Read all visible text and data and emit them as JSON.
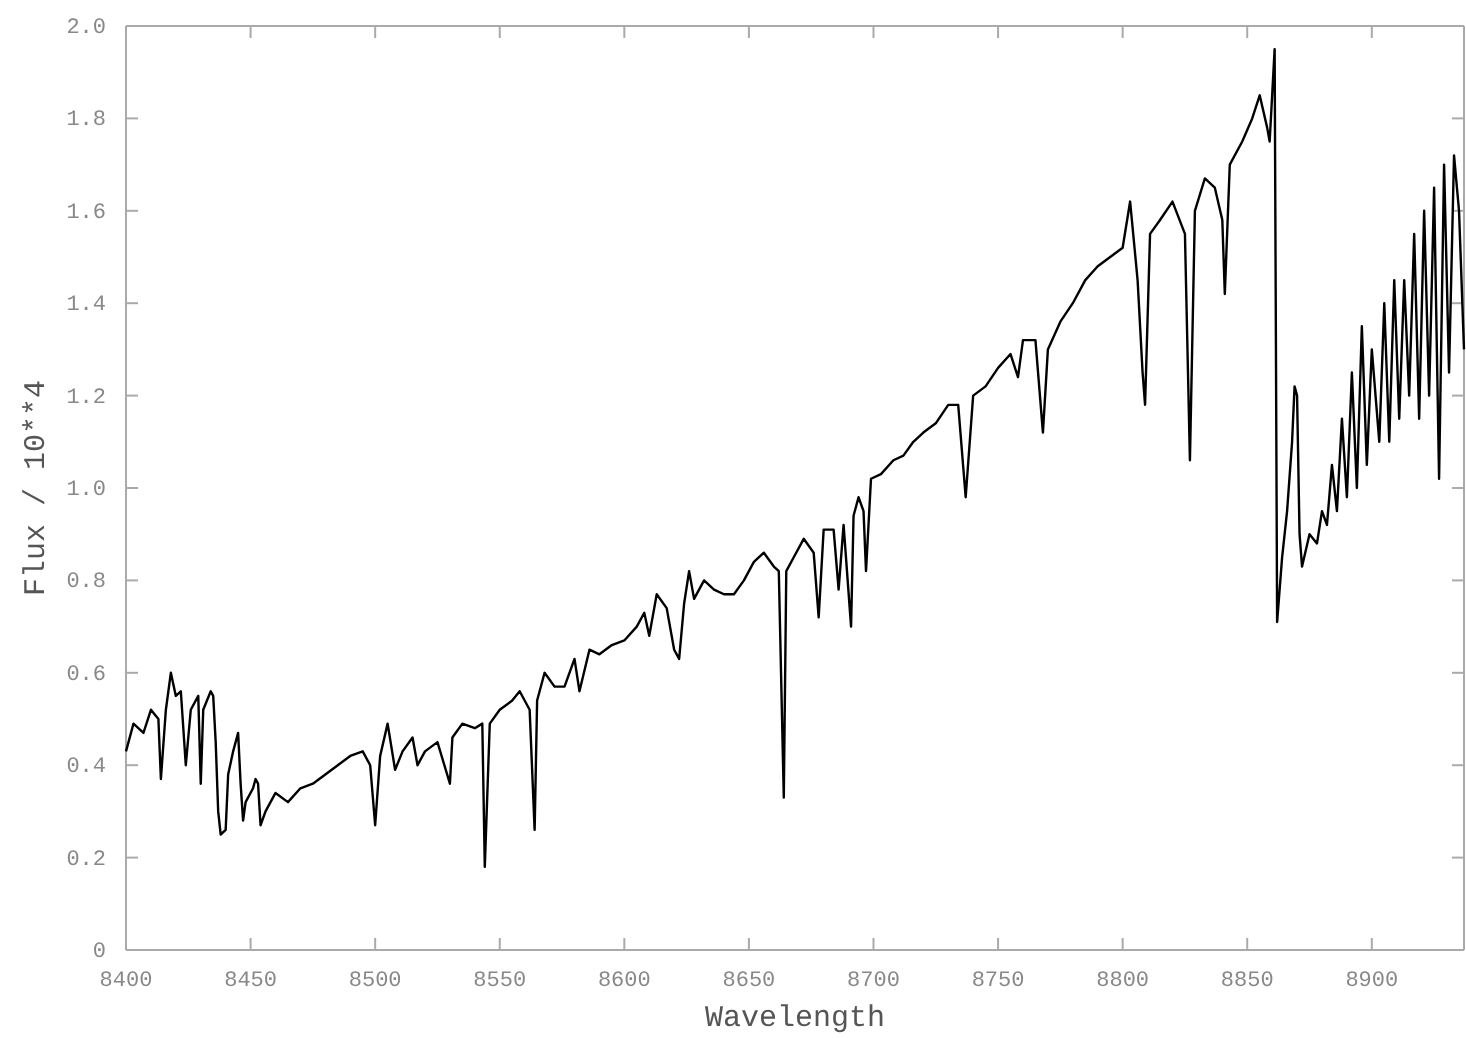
{
  "chart_data": {
    "type": "line",
    "xlabel": "Wavelength",
    "ylabel": "Flux / 10**4",
    "xlim": [
      8400,
      8937
    ],
    "xticks": [
      8400,
      8450,
      8500,
      8550,
      8600,
      8650,
      8700,
      8750,
      8800,
      8850,
      8900
    ],
    "ylim": [
      0,
      2.0
    ],
    "yticks": [
      {
        "value": 0,
        "label": "0"
      },
      {
        "value": 0.2,
        "label": "0.2"
      },
      {
        "value": 0.4,
        "label": "0.4"
      },
      {
        "value": 0.6,
        "label": "0.6"
      },
      {
        "value": 0.8,
        "label": "0.8"
      },
      {
        "value": 1.0,
        "label": "1.0"
      },
      {
        "value": 1.2,
        "label": "1.2"
      },
      {
        "value": 1.4,
        "label": "1.4"
      },
      {
        "value": 1.6,
        "label": "1.6"
      },
      {
        "value": 1.8,
        "label": "1.8"
      },
      {
        "value": 2.0,
        "label": "2.0"
      }
    ],
    "marker": "none",
    "line_style": "solid",
    "series": [
      {
        "color": "#000000",
        "x": [
          8400,
          8403,
          8407,
          8410,
          8413,
          8414,
          8416,
          8418,
          8420,
          8422,
          8424,
          8426,
          8429,
          8430,
          8431,
          8434,
          8435,
          8436,
          8437,
          8438,
          8440,
          8441,
          8443,
          8445,
          8446,
          8447,
          8448,
          8451,
          8452,
          8453,
          8454,
          8456,
          8460,
          8465,
          8470,
          8475,
          8480,
          8485,
          8490,
          8495,
          8498,
          8500,
          8502,
          8505,
          8508,
          8511,
          8515,
          8517,
          8520,
          8525,
          8530,
          8531,
          8535,
          8540,
          8543,
          8544,
          8546,
          8550,
          8555,
          8558,
          8562,
          8564,
          8565,
          8568,
          8572,
          8576,
          8580,
          8582,
          8586,
          8590,
          8595,
          8600,
          8605,
          8608,
          8610,
          8613,
          8617,
          8620,
          8622,
          8624,
          8626,
          8628,
          8632,
          8636,
          8640,
          8644,
          8648,
          8652,
          8656,
          8660,
          8662,
          8664,
          8665,
          8668,
          8672,
          8676,
          8678,
          8680,
          8684,
          8686,
          8688,
          8691,
          8692,
          8694,
          8696,
          8697,
          8699,
          8703,
          8708,
          8712,
          8716,
          8720,
          8725,
          8730,
          8734,
          8737,
          8740,
          8745,
          8750,
          8755,
          8758,
          8760,
          8765,
          8768,
          8770,
          8775,
          8780,
          8785,
          8790,
          8795,
          8800,
          8803,
          8806,
          8808,
          8809,
          8811,
          8815,
          8820,
          8825,
          8827,
          8829,
          8833,
          8837,
          8840,
          8841,
          8843,
          8848,
          8852,
          8855,
          8858,
          8859,
          8861,
          8862,
          8864,
          8866,
          8868,
          8869,
          8870,
          8871,
          8872,
          8875,
          8878,
          8880,
          8882,
          8884,
          8886,
          8888,
          8890,
          8892,
          8894,
          8896,
          8898,
          8900,
          8903,
          8905,
          8907,
          8909,
          8911,
          8913,
          8915,
          8917,
          8919,
          8921,
          8923,
          8925,
          8927,
          8929,
          8931,
          8933,
          8935,
          8937
        ],
        "values": [
          0.43,
          0.49,
          0.47,
          0.52,
          0.5,
          0.37,
          0.52,
          0.6,
          0.55,
          0.56,
          0.4,
          0.52,
          0.55,
          0.36,
          0.52,
          0.56,
          0.55,
          0.45,
          0.3,
          0.25,
          0.26,
          0.38,
          0.43,
          0.47,
          0.36,
          0.28,
          0.32,
          0.35,
          0.37,
          0.36,
          0.27,
          0.3,
          0.34,
          0.32,
          0.35,
          0.36,
          0.38,
          0.4,
          0.42,
          0.43,
          0.4,
          0.27,
          0.42,
          0.49,
          0.39,
          0.43,
          0.46,
          0.4,
          0.43,
          0.45,
          0.36,
          0.46,
          0.49,
          0.48,
          0.49,
          0.18,
          0.49,
          0.52,
          0.54,
          0.56,
          0.52,
          0.26,
          0.54,
          0.6,
          0.57,
          0.57,
          0.63,
          0.56,
          0.65,
          0.64,
          0.66,
          0.67,
          0.7,
          0.73,
          0.68,
          0.77,
          0.74,
          0.65,
          0.63,
          0.75,
          0.82,
          0.76,
          0.8,
          0.78,
          0.77,
          0.77,
          0.8,
          0.84,
          0.86,
          0.83,
          0.82,
          0.33,
          0.82,
          0.85,
          0.89,
          0.86,
          0.72,
          0.91,
          0.91,
          0.78,
          0.92,
          0.7,
          0.94,
          0.98,
          0.95,
          0.82,
          1.02,
          1.03,
          1.06,
          1.07,
          1.1,
          1.12,
          1.14,
          1.18,
          1.18,
          0.98,
          1.2,
          1.22,
          1.26,
          1.29,
          1.24,
          1.32,
          1.32,
          1.12,
          1.3,
          1.36,
          1.4,
          1.45,
          1.48,
          1.5,
          1.52,
          1.62,
          1.45,
          1.25,
          1.18,
          1.55,
          1.58,
          1.62,
          1.55,
          1.06,
          1.6,
          1.67,
          1.65,
          1.58,
          1.42,
          1.7,
          1.75,
          1.8,
          1.85,
          1.78,
          1.75,
          1.95,
          0.71,
          0.85,
          0.95,
          1.1,
          1.22,
          1.2,
          0.9,
          0.83,
          0.9,
          0.88,
          0.95,
          0.92,
          1.05,
          0.95,
          1.15,
          0.98,
          1.25,
          1.0,
          1.35,
          1.05,
          1.3,
          1.1,
          1.4,
          1.1,
          1.45,
          1.15,
          1.45,
          1.2,
          1.55,
          1.15,
          1.6,
          1.2,
          1.65,
          1.02,
          1.7,
          1.25,
          1.72,
          1.6,
          1.3
        ]
      }
    ]
  }
}
